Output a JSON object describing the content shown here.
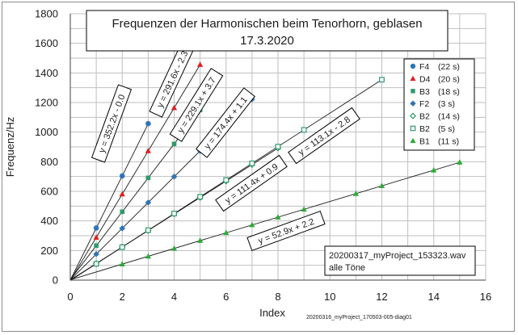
{
  "chart_data": {
    "type": "scatter",
    "title_line1": "Frequenzen der Harmonischen beim Tenorhorn, geblasen",
    "title_line2": "17.3.2020",
    "xlabel": "Index",
    "ylabel": "Frequenz/Hz",
    "xlim": [
      0,
      16
    ],
    "ylim": [
      0,
      1800
    ],
    "x_ticks": [
      "0",
      "2",
      "4",
      "6",
      "8",
      "10",
      "12",
      "14",
      "16"
    ],
    "y_ticks": [
      "0",
      "200",
      "400",
      "600",
      "800",
      "1000",
      "1200",
      "1400",
      "1600",
      "1800"
    ],
    "grid": true,
    "legend_position": "top-right",
    "series": [
      {
        "name": "F4",
        "duration": "(22 s)",
        "marker": "circle",
        "color": "#2e75b6",
        "slope": 352.2,
        "intercept": 0.0,
        "equation": "y = 352.2x - 0.0",
        "x": [
          1,
          2,
          3
        ],
        "y": [
          352,
          704,
          1057
        ]
      },
      {
        "name": "D4",
        "duration": "(20 s)",
        "marker": "triangle",
        "color": "#e02020",
        "slope": 291.6,
        "intercept": -2.3,
        "equation": "y = 291.6x - 2.3",
        "x": [
          1,
          2,
          3,
          4,
          5
        ],
        "y": [
          289,
          581,
          873,
          1164,
          1456
        ]
      },
      {
        "name": "B3",
        "duration": "(18 s)",
        "marker": "square",
        "color": "#2e9a6a",
        "slope": 229.1,
        "intercept": 3.7,
        "equation": "y = 229.1x + 3.7",
        "x": [
          1,
          2,
          3,
          4,
          5
        ],
        "y": [
          233,
          462,
          691,
          920,
          1149
        ]
      },
      {
        "name": "F2",
        "duration": "(3 s)",
        "marker": "diamond",
        "color": "#2e75b6",
        "slope": 174.4,
        "intercept": 1.1,
        "equation": "y = 174.4x + 1.1",
        "x": [
          1,
          2,
          3,
          4,
          5,
          6,
          7
        ],
        "y": [
          176,
          350,
          524,
          699,
          873,
          1048,
          1222
        ]
      },
      {
        "name": "B2",
        "duration": "(14 s)",
        "marker": "open-diamond",
        "color": "#2e9a6a",
        "slope": 111.4,
        "intercept": 0.9,
        "equation": "y = 111.4x + 0.9",
        "x": [
          1,
          2,
          3,
          4,
          5,
          6,
          7,
          8
        ],
        "y": [
          112,
          224,
          335,
          447,
          558,
          669,
          781,
          892
        ]
      },
      {
        "name": "B2",
        "duration": "(5 s)",
        "marker": "open-square",
        "color": "#2e9a6a",
        "slope": 113.1,
        "intercept": -2.8,
        "equation": "y = 113.1x - 2.8",
        "x": [
          1,
          2,
          3,
          4,
          5,
          6,
          7,
          8,
          9,
          12
        ],
        "y": [
          110,
          223,
          337,
          450,
          563,
          676,
          789,
          902,
          1015,
          1354
        ]
      },
      {
        "name": "B1",
        "duration": "(11 s)",
        "marker": "triangle",
        "color": "#2eaa3a",
        "slope": 52.9,
        "intercept": 2.2,
        "equation": "y = 52.9x + 2.2",
        "x": [
          2,
          3,
          4,
          5,
          6,
          7,
          8,
          9,
          11,
          12,
          14,
          15
        ],
        "y": [
          108,
          161,
          214,
          267,
          320,
          373,
          425,
          478,
          584,
          637,
          743,
          796
        ]
      }
    ]
  },
  "note": {
    "line1": "20200317_myProject_153323.wav",
    "line2": "alle Töne"
  },
  "footer": "20200316_myProject_170503-005-diag01"
}
